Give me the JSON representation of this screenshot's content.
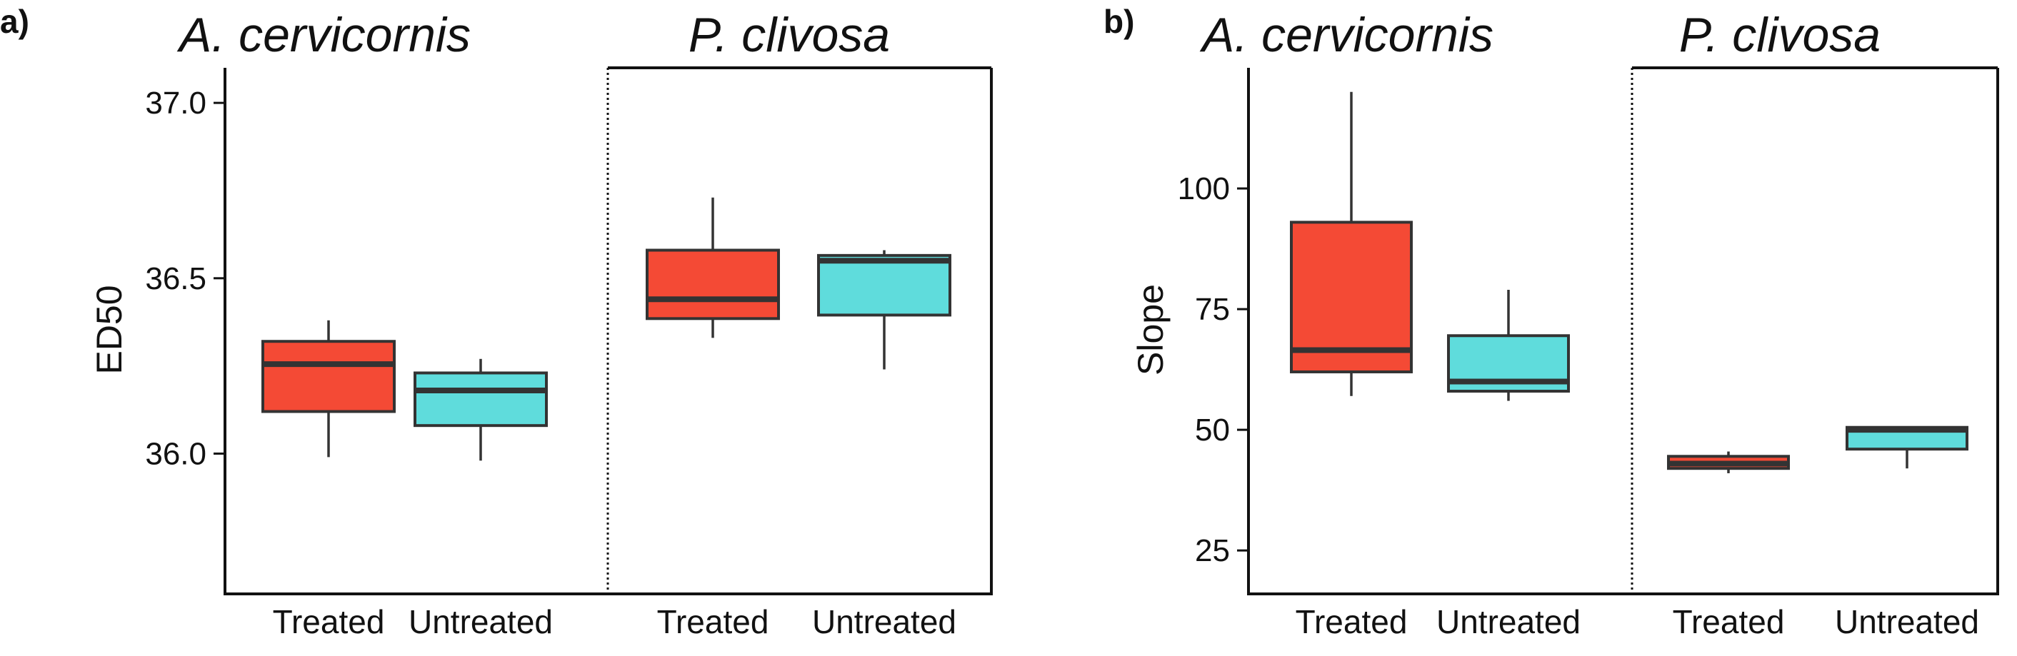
{
  "colors": {
    "treated": "#f44a35",
    "untreated": "#5fdcdc",
    "box_stroke": "#333333",
    "axis": "#111111"
  },
  "chart_data": [
    {
      "type": "box",
      "panel_label": "a)",
      "ylabel": "ED50",
      "ylim": [
        35.6,
        37.1
      ],
      "yticks": [
        36.0,
        36.5,
        37.0
      ],
      "ytick_labels": [
        "36.0",
        "36.5",
        "37.0"
      ],
      "species": [
        "A. cervicornis",
        "P. clivosa"
      ],
      "categories": [
        "Treated",
        "Untreated"
      ],
      "boxes": [
        {
          "species": "A. cervicornis",
          "category": "Treated",
          "color": "treated",
          "whisker_low": 35.99,
          "q1": 36.12,
          "median": 36.255,
          "q3": 36.32,
          "whisker_high": 36.38
        },
        {
          "species": "A. cervicornis",
          "category": "Untreated",
          "color": "untreated",
          "whisker_low": 35.98,
          "q1": 36.08,
          "median": 36.18,
          "q3": 36.23,
          "whisker_high": 36.27
        },
        {
          "species": "P. clivosa",
          "category": "Treated",
          "color": "treated",
          "whisker_low": 36.33,
          "q1": 36.385,
          "median": 36.44,
          "q3": 36.58,
          "whisker_high": 36.73
        },
        {
          "species": "P. clivosa",
          "category": "Untreated",
          "color": "untreated",
          "whisker_low": 36.24,
          "q1": 36.395,
          "median": 36.55,
          "q3": 36.565,
          "whisker_high": 36.58
        }
      ]
    },
    {
      "type": "box",
      "panel_label": "b)",
      "ylabel": "Slope",
      "ylim": [
        16,
        125
      ],
      "yticks": [
        25,
        50,
        75,
        100
      ],
      "ytick_labels": [
        "25",
        "50",
        "75",
        "100"
      ],
      "species": [
        "A. cervicornis",
        "P. clivosa"
      ],
      "categories": [
        "Treated",
        "Untreated"
      ],
      "boxes": [
        {
          "species": "A. cervicornis",
          "category": "Treated",
          "color": "treated",
          "whisker_low": 57,
          "q1": 62,
          "median": 66.5,
          "q3": 93,
          "whisker_high": 120
        },
        {
          "species": "A. cervicornis",
          "category": "Untreated",
          "color": "untreated",
          "whisker_low": 56,
          "q1": 58,
          "median": 60,
          "q3": 69.5,
          "whisker_high": 79
        },
        {
          "species": "P. clivosa",
          "category": "Treated",
          "color": "treated",
          "whisker_low": 41,
          "q1": 42,
          "median": 43,
          "q3": 44.5,
          "whisker_high": 45.5
        },
        {
          "species": "P. clivosa",
          "category": "Untreated",
          "color": "untreated",
          "whisker_low": 42,
          "q1": 46,
          "median": 50,
          "q3": 50.5,
          "whisker_high": 50.5
        }
      ]
    }
  ]
}
